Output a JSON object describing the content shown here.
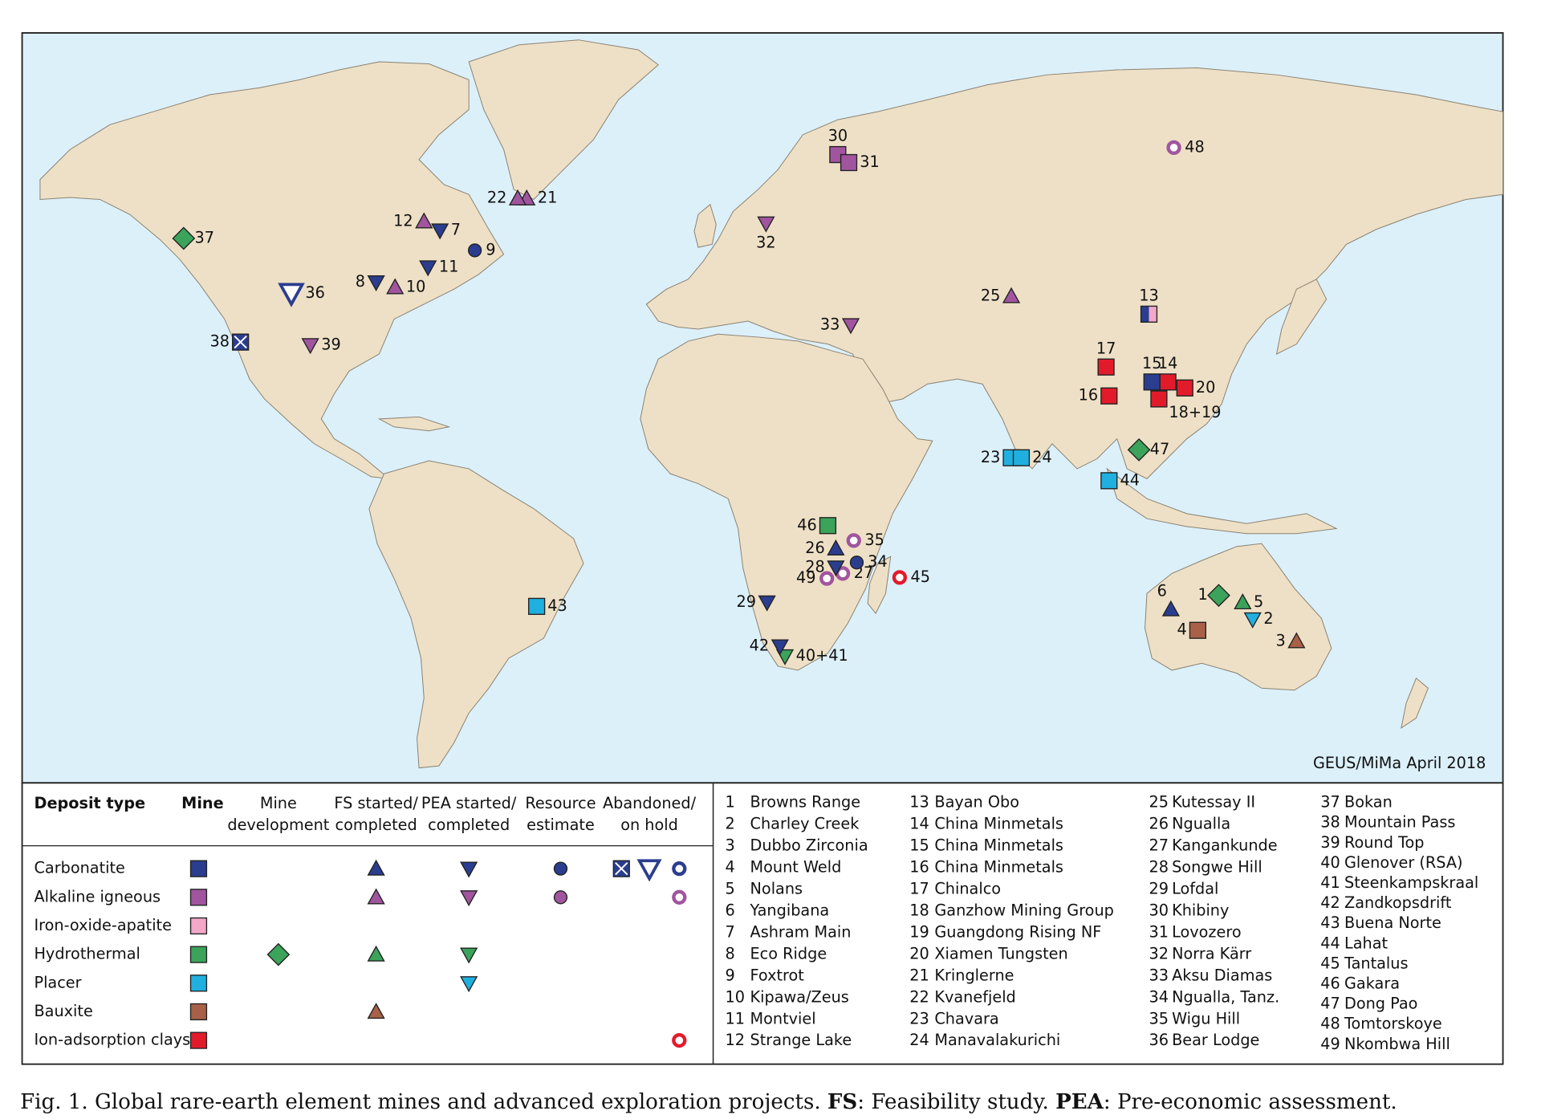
{
  "map": {
    "credit": "GEUS/MiMa April 2018",
    "markers": [
      {
        "label": "1"
      },
      {
        "label": "2"
      },
      {
        "label": "3"
      },
      {
        "label": "4"
      },
      {
        "label": "5"
      },
      {
        "label": "6"
      },
      {
        "label": "7"
      },
      {
        "label": "8"
      },
      {
        "label": "9"
      },
      {
        "label": "10"
      },
      {
        "label": "11"
      },
      {
        "label": "12"
      },
      {
        "label": "13"
      },
      {
        "label": "14"
      },
      {
        "label": "15"
      },
      {
        "label": "16"
      },
      {
        "label": "17"
      },
      {
        "label": "18+19"
      },
      {
        "label": "20"
      },
      {
        "label": "21"
      },
      {
        "label": "22"
      },
      {
        "label": "23"
      },
      {
        "label": "24"
      },
      {
        "label": "25"
      },
      {
        "label": "26"
      },
      {
        "label": "27"
      },
      {
        "label": "28"
      },
      {
        "label": "29"
      },
      {
        "label": "30"
      },
      {
        "label": "31"
      },
      {
        "label": "32"
      },
      {
        "label": "33"
      },
      {
        "label": "34"
      },
      {
        "label": "35"
      },
      {
        "label": "36"
      },
      {
        "label": "37"
      },
      {
        "label": "38"
      },
      {
        "label": "39"
      },
      {
        "label": "40+41"
      },
      {
        "label": "42"
      },
      {
        "label": "43"
      },
      {
        "label": "44"
      },
      {
        "label": "45"
      },
      {
        "label": "46"
      },
      {
        "label": "47"
      },
      {
        "label": "48"
      },
      {
        "label": "49"
      }
    ]
  },
  "legend": {
    "headers": [
      [
        "Deposit type"
      ],
      [
        "Mine"
      ],
      [
        "Mine",
        "development"
      ],
      [
        "FS started/",
        "completed"
      ],
      [
        "PEA started/",
        "completed"
      ],
      [
        "Resource",
        "estimate"
      ],
      [
        "Abandoned/",
        "on hold"
      ]
    ],
    "rows": [
      "Carbonatite",
      "Alkaline igneous",
      "Iron-oxide-apatite",
      "Hydrothermal",
      "Placer",
      "Bauxite",
      "Ion-adsorption clays"
    ]
  },
  "projects": [
    {
      "number": "1",
      "name": "Browns Range"
    },
    {
      "number": "2",
      "name": "Charley Creek"
    },
    {
      "number": "3",
      "name": "Dubbo Zirconia"
    },
    {
      "number": "4",
      "name": "Mount Weld"
    },
    {
      "number": "5",
      "name": "Nolans"
    },
    {
      "number": "6",
      "name": "Yangibana"
    },
    {
      "number": "7",
      "name": "Ashram Main"
    },
    {
      "number": "8",
      "name": "Eco Ridge"
    },
    {
      "number": "9",
      "name": "Foxtrot"
    },
    {
      "number": "10",
      "name": "Kipawa/Zeus"
    },
    {
      "number": "11",
      "name": "Montviel"
    },
    {
      "number": "12",
      "name": "Strange Lake"
    },
    {
      "number": "13",
      "name": "Bayan Obo"
    },
    {
      "number": "14",
      "name": "China Minmetals"
    },
    {
      "number": "15",
      "name": "China Minmetals"
    },
    {
      "number": "16",
      "name": "China Minmetals"
    },
    {
      "number": "17",
      "name": "Chinalco"
    },
    {
      "number": "18",
      "name": "Ganzhow Mining Group"
    },
    {
      "number": "19",
      "name": "Guangdong Rising NF"
    },
    {
      "number": "20",
      "name": "Xiamen Tungsten"
    },
    {
      "number": "21",
      "name": "Kringlerne"
    },
    {
      "number": "22",
      "name": "Kvanefjeld"
    },
    {
      "number": "23",
      "name": "Chavara"
    },
    {
      "number": "24",
      "name": "Manavalakurichi"
    },
    {
      "number": "25",
      "name": "Kutessay II"
    },
    {
      "number": "26",
      "name": "Ngualla"
    },
    {
      "number": "27",
      "name": "Kangankunde"
    },
    {
      "number": "28",
      "name": "Songwe Hill"
    },
    {
      "number": "29",
      "name": "Lofdal"
    },
    {
      "number": "30",
      "name": "Khibiny"
    },
    {
      "number": "31",
      "name": "Lovozero"
    },
    {
      "number": "32",
      "name": "Norra Kärr"
    },
    {
      "number": "33",
      "name": "Aksu Diamas"
    },
    {
      "number": "34",
      "name": "Ngualla, Tanz."
    },
    {
      "number": "35",
      "name": "Wigu Hill"
    },
    {
      "number": "36",
      "name": "Bear Lodge"
    },
    {
      "number": "37",
      "name": "Bokan"
    },
    {
      "number": "38",
      "name": "Mountain Pass"
    },
    {
      "number": "39",
      "name": "Round Top"
    },
    {
      "number": "40",
      "name": "Glenover (RSA)"
    },
    {
      "number": "41",
      "name": "Steenkampskraal"
    },
    {
      "number": "42",
      "name": "Zandkopsdrift"
    },
    {
      "number": "43",
      "name": "Buena Norte"
    },
    {
      "number": "44",
      "name": "Lahat"
    },
    {
      "number": "45",
      "name": "Tantalus"
    },
    {
      "number": "46",
      "name": "Gakara"
    },
    {
      "number": "47",
      "name": "Dong Pao"
    },
    {
      "number": "48",
      "name": "Tomtorskoye"
    },
    {
      "number": "49",
      "name": "Nkombwa Hill"
    }
  ],
  "caption": [
    "Fig. 1. Global rare-earth element mines and advanced exploration projects. ",
    "FS",
    ": Feasibility study. ",
    "PEA",
    ": Pre-economic assessment."
  ]
}
